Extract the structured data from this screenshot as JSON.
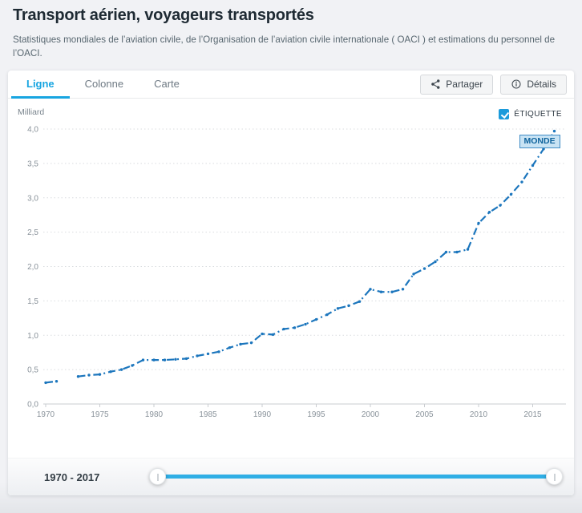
{
  "page": {
    "title": "Transport aérien, voyageurs transportés",
    "subtitle": "Statistiques mondiales de l’aviation civile, de l’Organisation de l’aviation civile internationale ( OACI ) et estimations du personnel de l’OACI."
  },
  "tabs": [
    {
      "label": "Ligne",
      "active": true
    },
    {
      "label": "Colonne",
      "active": false
    },
    {
      "label": "Carte",
      "active": false
    }
  ],
  "toolbar": {
    "share_label": "Partager",
    "details_label": "Détails"
  },
  "chart": {
    "unit_label": "Milliard",
    "legend_label": "ÉTIQUETTE",
    "legend_checked": true,
    "series_tag": "MONDE"
  },
  "footer": {
    "range_label": "1970 - 2017"
  },
  "colors": {
    "accent": "#18a5e1",
    "line": "#1c76bd",
    "slider_track": "#2faee5",
    "grid": "#d9dcdf",
    "axis": "#c9ccd0",
    "tick_text": "#8a939b"
  },
  "chart_data": {
    "type": "line",
    "title": "Transport aérien, voyageurs transportés",
    "unit": "Milliard",
    "series": [
      {
        "name": "MONDE",
        "x": [
          1970,
          1971,
          1972,
          1973,
          1974,
          1975,
          1976,
          1977,
          1978,
          1979,
          1980,
          1981,
          1982,
          1983,
          1984,
          1985,
          1986,
          1987,
          1988,
          1989,
          1990,
          1991,
          1992,
          1993,
          1994,
          1995,
          1996,
          1997,
          1998,
          1999,
          2000,
          2001,
          2002,
          2003,
          2004,
          2005,
          2006,
          2007,
          2008,
          2009,
          2010,
          2011,
          2012,
          2013,
          2014,
          2015,
          2016,
          2017
        ],
        "values": [
          0.31,
          0.33,
          null,
          0.4,
          0.42,
          0.43,
          0.47,
          0.5,
          0.56,
          0.64,
          0.64,
          0.64,
          0.65,
          0.66,
          0.7,
          0.73,
          0.76,
          0.82,
          0.87,
          0.89,
          1.02,
          1.01,
          1.09,
          1.11,
          1.16,
          1.23,
          1.3,
          1.39,
          1.43,
          1.49,
          1.67,
          1.63,
          1.63,
          1.67,
          1.89,
          1.97,
          2.07,
          2.21,
          2.21,
          2.25,
          2.63,
          2.79,
          2.89,
          3.05,
          3.23,
          3.47,
          3.71,
          3.97
        ]
      }
    ],
    "xticks": [
      1970,
      1975,
      1980,
      1985,
      1990,
      1995,
      2000,
      2005,
      2010,
      2015
    ],
    "yticks": [
      0,
      0.5,
      1,
      1.5,
      2,
      2.5,
      3,
      3.5,
      4
    ],
    "ytick_labels": [
      "0,0",
      "0,5",
      "1,0",
      "1,5",
      "2,0",
      "2,5",
      "3,0",
      "3,5",
      "4,0"
    ],
    "xtick_labels": [
      "1970",
      "1975",
      "1980",
      "1985",
      "1990",
      "1995",
      "2000",
      "2005",
      "2010",
      "2015"
    ],
    "xlim": [
      1970,
      2017
    ],
    "ylim": [
      0,
      4.2
    ],
    "grid": true,
    "line_style": "dash-dot",
    "legend_position": "top-right"
  }
}
